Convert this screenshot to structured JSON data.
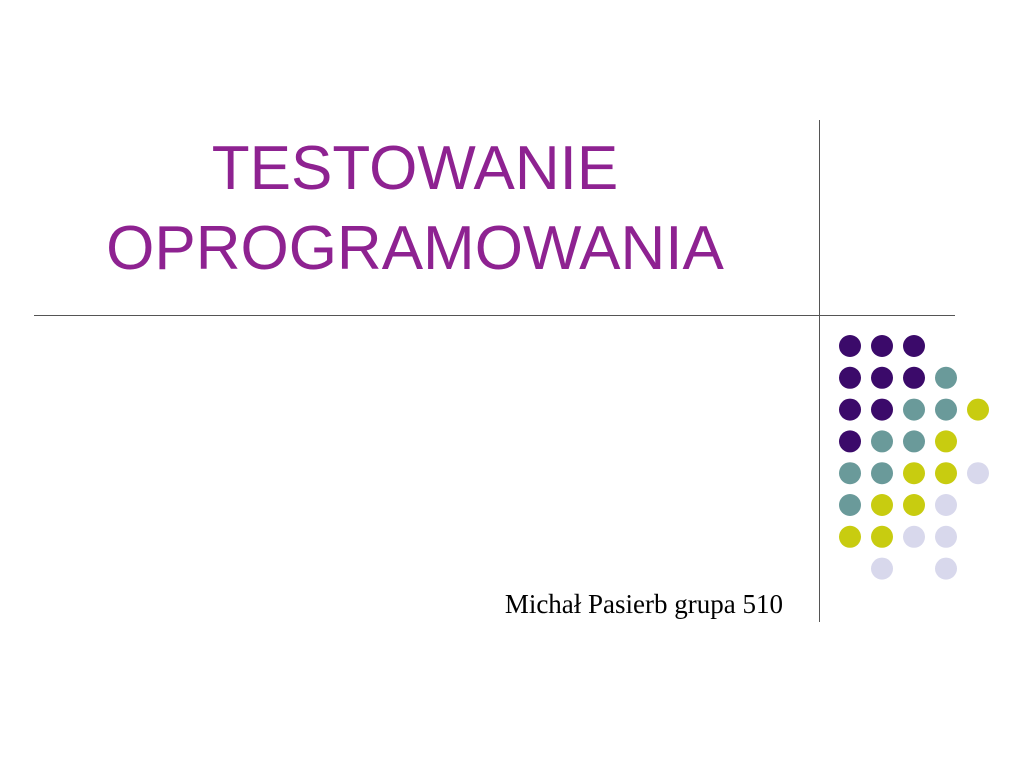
{
  "slide": {
    "title": [
      "TESTOWANIE",
      "OPROGRAMOWANIA"
    ],
    "subtitle": "Michał Pasierb grupa 510"
  }
}
